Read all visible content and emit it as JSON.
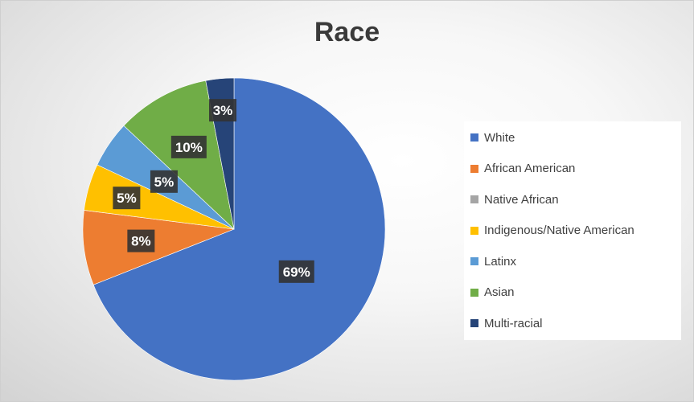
{
  "chart_data": {
    "type": "pie",
    "title": "Race",
    "categories": [
      "White",
      "African American",
      "Native African",
      "Indigenous/Native American",
      "Latinx",
      "Asian",
      "Multi-racial"
    ],
    "values": [
      69,
      8,
      0,
      5,
      5,
      10,
      3
    ],
    "labels": [
      "69%",
      "8%",
      "",
      "5%",
      "5%",
      "10%",
      "3%"
    ],
    "colors": [
      "#4472C4",
      "#ED7D31",
      "#A5A5A5",
      "#FFC000",
      "#5B9BD5",
      "#70AD47",
      "#264478"
    ],
    "legend_position": "right"
  }
}
